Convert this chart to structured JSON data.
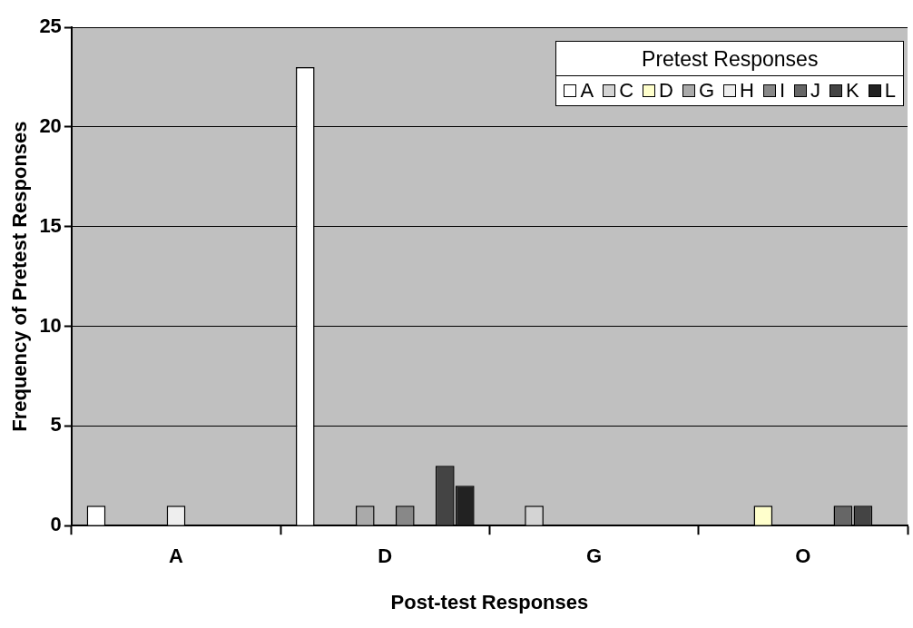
{
  "chart_data": {
    "type": "bar",
    "xlabel": "Post-test Responses",
    "ylabel": "Frequency of Pretest Responses",
    "legend_title": "Pretest Responses",
    "legend": "top right",
    "grid": "y",
    "categories": [
      "A",
      "D",
      "G",
      "O"
    ],
    "ylim": [
      0,
      25
    ],
    "yticks": [
      0,
      5,
      10,
      15,
      20,
      25
    ],
    "series": [
      {
        "name": "A",
        "color": "#ffffff",
        "values": [
          1,
          23,
          0,
          0
        ]
      },
      {
        "name": "C",
        "color": "#d4d4d4",
        "values": [
          0,
          0,
          1,
          0
        ]
      },
      {
        "name": "D",
        "color": "#ffffcc",
        "values": [
          0,
          0,
          0,
          1
        ]
      },
      {
        "name": "G",
        "color": "#aaaaaa",
        "values": [
          0,
          1,
          0,
          0
        ]
      },
      {
        "name": "H",
        "color": "#eeeeee",
        "values": [
          1,
          0,
          0,
          0
        ]
      },
      {
        "name": "I",
        "color": "#888888",
        "values": [
          0,
          1,
          0,
          0
        ]
      },
      {
        "name": "J",
        "color": "#666666",
        "values": [
          0,
          0,
          0,
          1
        ]
      },
      {
        "name": "K",
        "color": "#444444",
        "values": [
          0,
          3,
          0,
          1
        ]
      },
      {
        "name": "L",
        "color": "#222222",
        "values": [
          0,
          2,
          0,
          0
        ]
      }
    ]
  }
}
